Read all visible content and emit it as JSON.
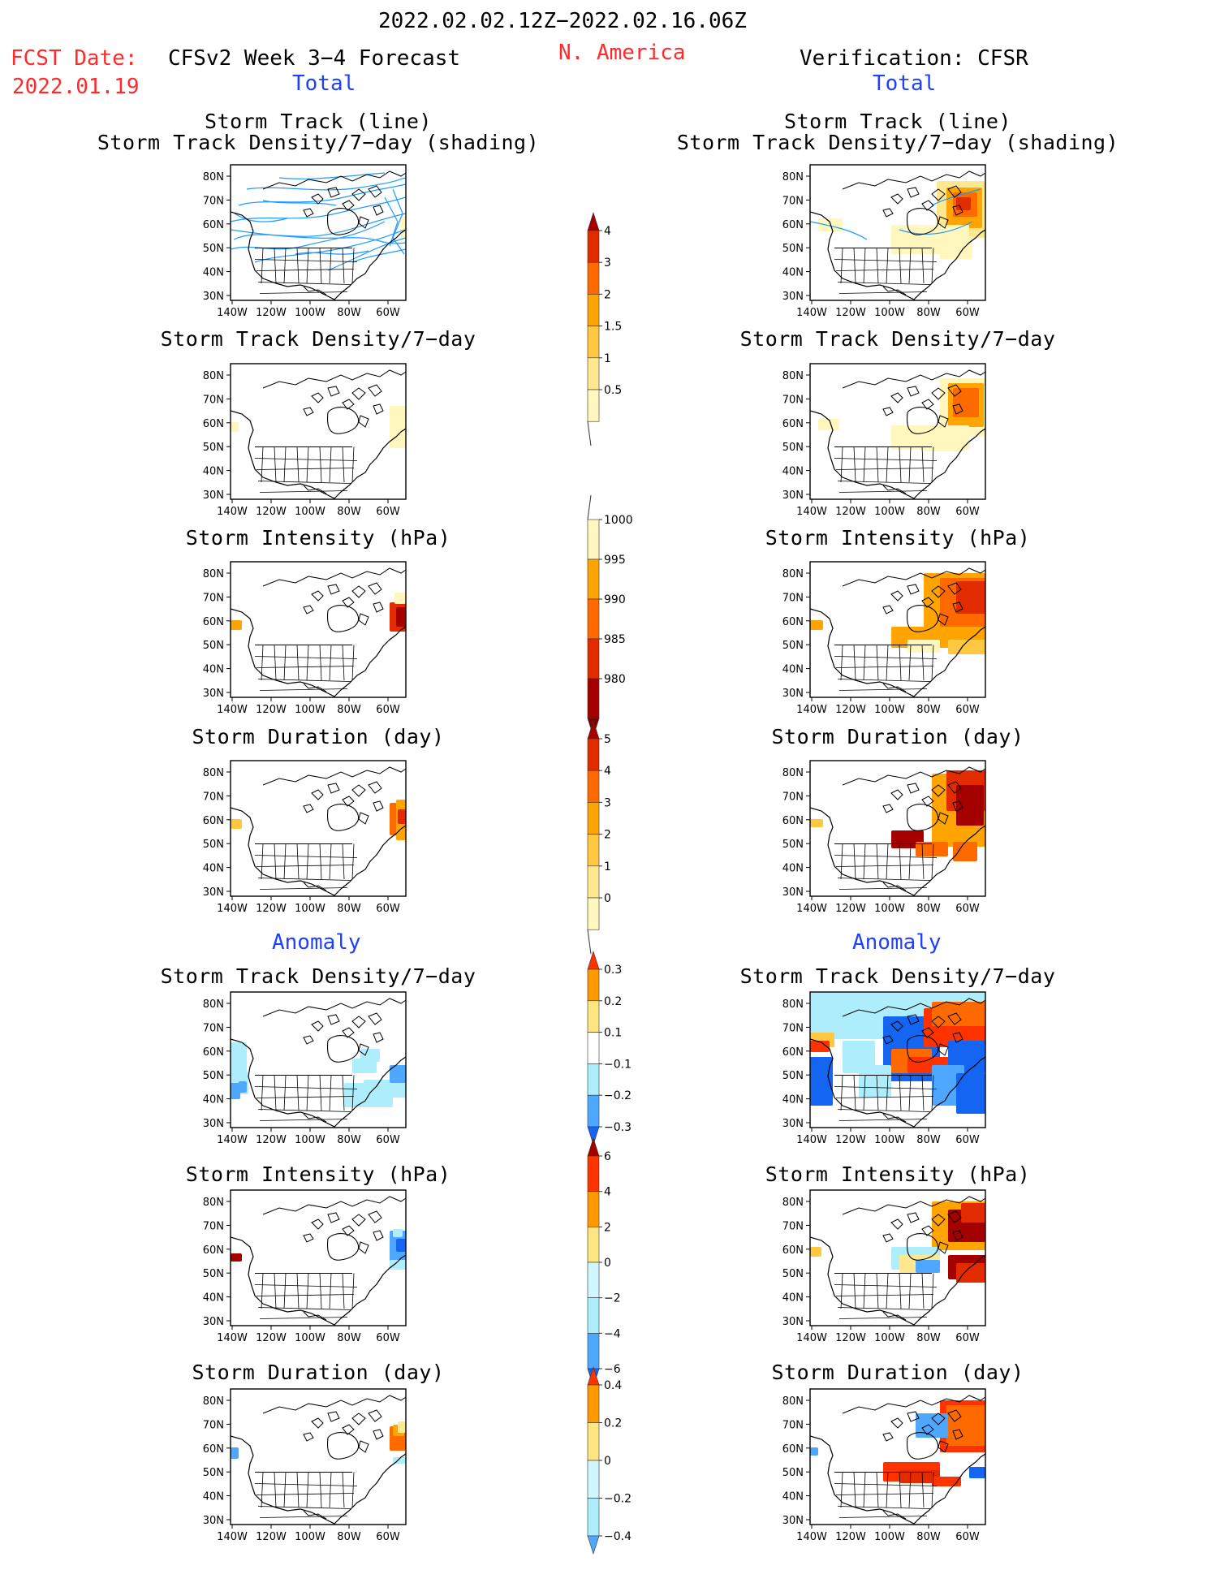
{
  "header": {
    "period": "2022.02.02.12Z−2022.02.16.06Z",
    "fcst_label": "FCST Date:",
    "fcst_date": "2022.01.19",
    "forecast_title": "CFSv2 Week 3−4 Forecast",
    "region": "N. America",
    "verification": "Verification: CFSR"
  },
  "sections": {
    "total": "Total",
    "anomaly": "Anomaly"
  },
  "axes": {
    "lat_labels": [
      "80N",
      "70N",
      "60N",
      "50N",
      "40N",
      "30N"
    ],
    "lon_labels": [
      "140W",
      "120W",
      "100W",
      "80W",
      "60W"
    ]
  },
  "columns": {
    "left": {
      "total_panels": [
        {
          "title": [
            "Storm Track (line)",
            "Storm Track Density/7−day (shading)"
          ],
          "field": "tracks"
        },
        {
          "title": [
            "Storm Track Density/7−day"
          ],
          "field": "density"
        },
        {
          "title": [
            "Storm Intensity (hPa)"
          ],
          "field": "intensity"
        },
        {
          "title": [
            "Storm Duration (day)"
          ],
          "field": "duration"
        }
      ],
      "anomaly_panels": [
        {
          "title": [
            "Storm Track Density/7−day"
          ],
          "field": "density_anom"
        },
        {
          "title": [
            "Storm Intensity (hPa)"
          ],
          "field": "intensity_anom"
        },
        {
          "title": [
            "Storm Duration (day)"
          ],
          "field": "duration_anom"
        }
      ]
    },
    "right": {
      "total_panels": [
        {
          "title": [
            "Storm Track (line)",
            "Storm Track Density/7−day (shading)"
          ],
          "field": "tracks"
        },
        {
          "title": [
            "Storm Track Density/7−day"
          ],
          "field": "density"
        },
        {
          "title": [
            "Storm Intensity (hPa)"
          ],
          "field": "intensity"
        },
        {
          "title": [
            "Storm Duration (day)"
          ],
          "field": "duration"
        }
      ],
      "anomaly_panels": [
        {
          "title": [
            "Storm Track Density/7−day"
          ],
          "field": "density_anom"
        },
        {
          "title": [
            "Storm Intensity (hPa)"
          ],
          "field": "intensity_anom"
        },
        {
          "title": [
            "Storm Duration (day)"
          ],
          "field": "duration_anom"
        }
      ]
    }
  },
  "colorbars": [
    {
      "name": "density",
      "labels": [
        "4",
        "3",
        "2",
        "1.5",
        "1",
        "0.5"
      ],
      "colors": [
        "#a50000",
        "#e32b00",
        "#ff6a00",
        "#ffa400",
        "#ffc840",
        "#ffe890",
        "#fff7bd"
      ],
      "tail": "bottom-line"
    },
    {
      "name": "intensity",
      "labels": [
        "1000",
        "995",
        "990",
        "985",
        "980"
      ],
      "colors": [
        "#fff7bd",
        "#ffa400",
        "#ff6a00",
        "#e32b00",
        "#a50000",
        "#800000"
      ],
      "tail": "top-line"
    },
    {
      "name": "duration",
      "labels": [
        "5",
        "4",
        "3",
        "2",
        "1",
        "0"
      ],
      "colors": [
        "#a50000",
        "#e32b00",
        "#ff6a00",
        "#ffa400",
        "#ffc840",
        "#ffe890",
        "#fff7bd"
      ],
      "tail": "bottom-line"
    },
    {
      "name": "density_anom",
      "labels": [
        "0.3",
        "0.2",
        "0.1",
        "−0.1",
        "−0.2",
        "−0.3"
      ],
      "colors": [
        "#ff3300",
        "#ff9900",
        "#ffe680",
        "#ffffff",
        "#aeeefc",
        "#4fa8ff",
        "#1466f2"
      ]
    },
    {
      "name": "intensity_anom",
      "labels": [
        "6",
        "4",
        "2",
        "0",
        "−2",
        "−4",
        "−6"
      ],
      "colors": [
        "#a50000",
        "#ff3300",
        "#ff9900",
        "#ffe680",
        "#d0f6ff",
        "#aeeefc",
        "#4fa8ff",
        "#1466f2"
      ]
    },
    {
      "name": "duration_anom",
      "labels": [
        "0.4",
        "0.2",
        "0",
        "−0.2",
        "−0.4"
      ],
      "colors": [
        "#ff3300",
        "#ff9900",
        "#ffe680",
        "#d0f6ff",
        "#aeeefc",
        "#4fa8ff"
      ]
    }
  ],
  "palette": {
    "blue_shades": [
      "#1466f2",
      "#4fa8ff",
      "#aeeefc"
    ],
    "warm_shades": [
      "#fff7bd",
      "#ffe890",
      "#ffc840",
      "#ffa400",
      "#ff6a00",
      "#e32b00",
      "#a50000"
    ],
    "track_line": "#1e9bff",
    "title_red": "#ff2a2a",
    "title_blue": "#1f3fff"
  }
}
